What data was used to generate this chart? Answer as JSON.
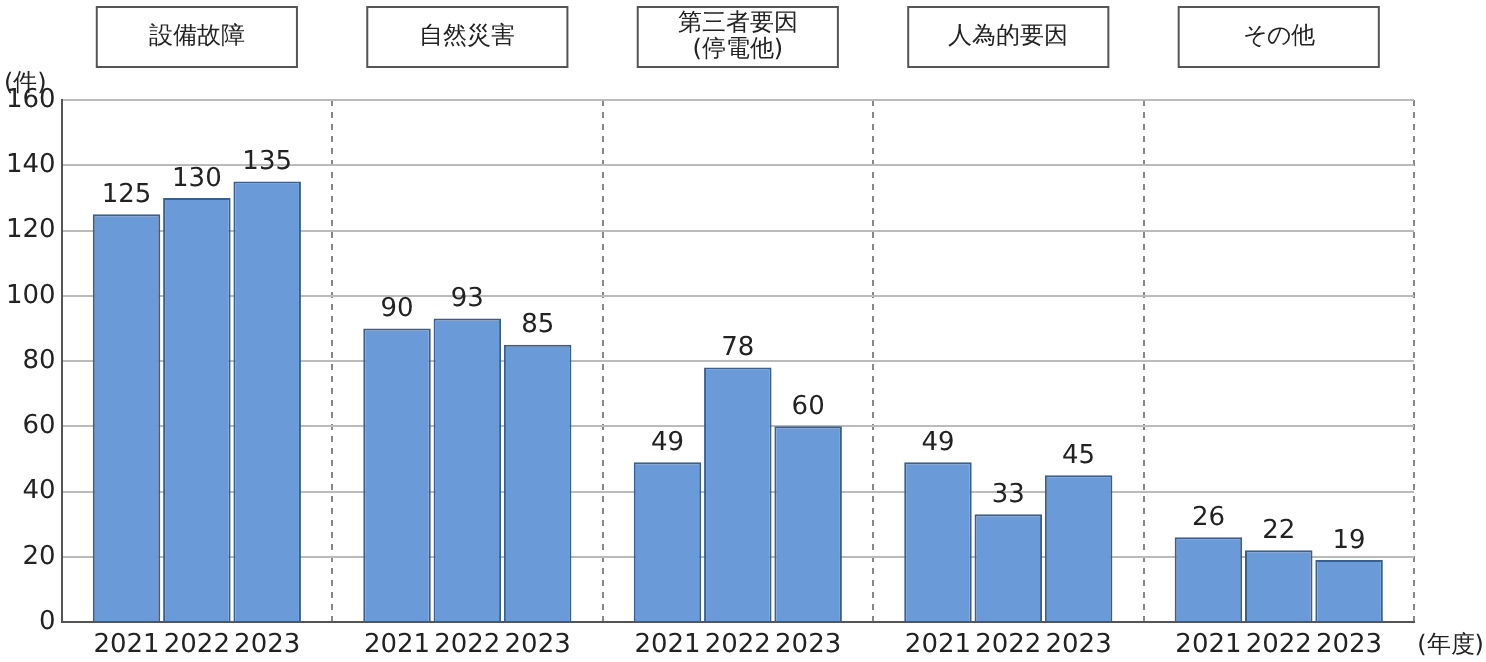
{
  "chart_data": {
    "type": "bar",
    "ylabel": "(件)",
    "xlabel": "(年度)",
    "categories": [
      "設備故障",
      "自然災害",
      "第三者要因\n(停電他)",
      "人為的要因",
      "その他"
    ],
    "series": [
      {
        "name": "2021",
        "color": "#6a9bd8",
        "values": [
          125,
          90,
          49,
          49,
          26
        ]
      },
      {
        "name": "2022",
        "color": "#6a9bd8",
        "values": [
          130,
          93,
          78,
          33,
          22
        ]
      },
      {
        "name": "2023",
        "color": "#6a9bd8",
        "values": [
          135,
          85,
          60,
          45,
          19
        ]
      }
    ],
    "ylim": [
      0,
      160
    ],
    "yticks": [
      0,
      20,
      40,
      60,
      80,
      100,
      120,
      140,
      160
    ],
    "grid": true,
    "legend": false,
    "data_labels": true
  }
}
